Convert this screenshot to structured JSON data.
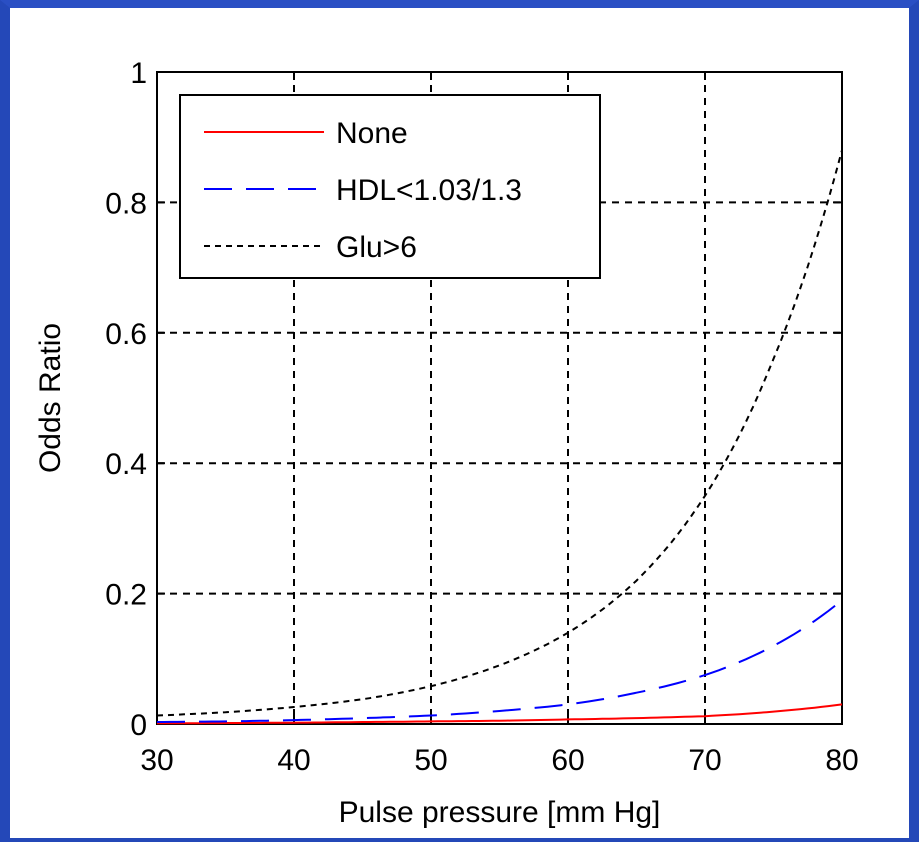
{
  "chart_data": {
    "type": "line",
    "title": "",
    "xlabel": "Pulse pressure [mm Hg]",
    "ylabel": "Odds Ratio",
    "xlim": [
      30,
      80
    ],
    "ylim": [
      0,
      1
    ],
    "xticks": [
      "30",
      "40",
      "50",
      "60",
      "70",
      "80"
    ],
    "yticks": [
      "0",
      "0.2",
      "0.4",
      "0.6",
      "0.8",
      "1"
    ],
    "xtick_values": [
      30,
      40,
      50,
      60,
      70,
      80
    ],
    "ytick_values": [
      0,
      0.2,
      0.4,
      0.6,
      0.8,
      1
    ],
    "grid": true,
    "legend_position": "top-left",
    "x": [
      30,
      35,
      40,
      45,
      50,
      55,
      60,
      65,
      70,
      75,
      80
    ],
    "series": [
      {
        "name": "None",
        "color": "#ff0000",
        "style": "solid",
        "values": [
          0.001,
          0.0015,
          0.002,
          0.003,
          0.004,
          0.005,
          0.007,
          0.009,
          0.012,
          0.019,
          0.03
        ]
      },
      {
        "name": "HDL<1.03/1.3",
        "color": "#0000ff",
        "style": "dashed",
        "values": [
          0.003,
          0.004,
          0.006,
          0.009,
          0.013,
          0.02,
          0.03,
          0.048,
          0.075,
          0.12,
          0.19
        ]
      },
      {
        "name": "Glu>6",
        "color": "#000000",
        "style": "dotted",
        "values": [
          0.013,
          0.018,
          0.026,
          0.038,
          0.058,
          0.09,
          0.14,
          0.22,
          0.35,
          0.56,
          0.88
        ]
      }
    ]
  }
}
